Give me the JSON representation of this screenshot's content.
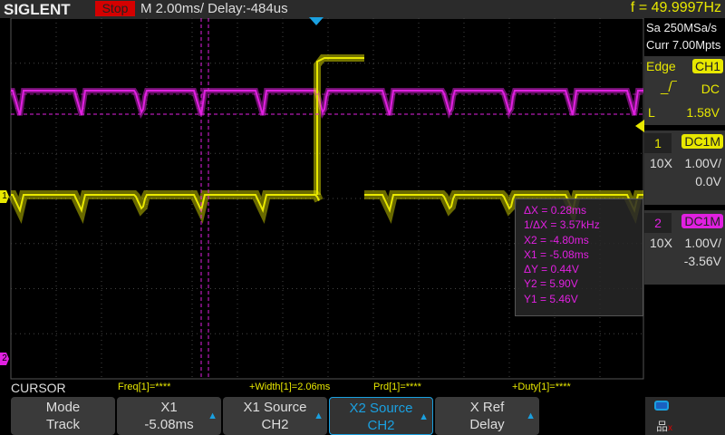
{
  "header": {
    "logo": "SIGLENT",
    "status": "Stop",
    "timebase": "M 2.00ms/ Delay:-484us",
    "frequency": "f = 49.9997Hz"
  },
  "acquisition": {
    "sample_rate": "Sa 250MSa/s",
    "memory": "Curr 7.00Mpts"
  },
  "trigger": {
    "type": "Edge",
    "source": "CH1",
    "slope_icon": "rising-edge-icon",
    "coupling": "DC",
    "level_label": "L",
    "level": "1.58V"
  },
  "channels": [
    {
      "num": "1",
      "coupling": "DC1M",
      "probe": "10X",
      "scale": "1.00V/",
      "offset": "0.0V",
      "color": "#e8e800"
    },
    {
      "num": "2",
      "coupling": "DC1M",
      "probe": "10X",
      "scale": "1.00V/",
      "offset": "-3.56V",
      "color": "#e020e0"
    }
  ],
  "cursor_readout": {
    "dx": "ΔX = 0.28ms",
    "inv_dx": "1/ΔX = 3.57kHz",
    "x2": "X2 = -4.80ms",
    "x1": "X1 = -5.08ms",
    "dy": "ΔY = 0.44V",
    "y2": "Y2 = 5.90V",
    "y1": "Y1 = 5.46V"
  },
  "measurements": {
    "label": "CURSOR",
    "freq": "Freq[1]=****",
    "width": "+Width[1]=2.06ms",
    "prd": "Prd[1]=****",
    "duty": "+Duty[1]=****"
  },
  "menu": [
    {
      "title": "Mode",
      "value": "Track",
      "arrow": false
    },
    {
      "title": "X1",
      "value": "-5.08ms",
      "arrow": true
    },
    {
      "title": "X1 Source",
      "value": "CH2",
      "arrow": true
    },
    {
      "title": "X2 Source",
      "value": "CH2",
      "arrow": true,
      "selected": true
    },
    {
      "title": "X Ref",
      "value": "Delay",
      "arrow": true
    }
  ],
  "markers": {
    "ch1": "1",
    "ch2": "2"
  },
  "colors": {
    "ch1": "#e8e800",
    "ch2": "#e020e0",
    "accent": "#1aa0e0",
    "stop": "#d40000"
  }
}
